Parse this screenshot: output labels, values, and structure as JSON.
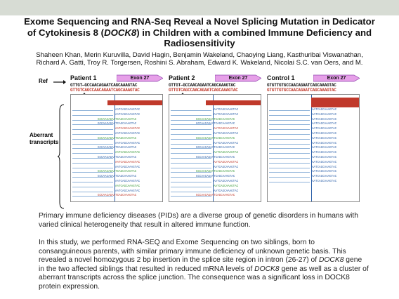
{
  "title_line1": "Exome Sequencing and RNA-Seq Reveal a Novel Splicing Mutation in Dedicator",
  "title_line2a": "of Cytokinesis 8 (",
  "title_italic": "DOCK8",
  "title_line2b": ") in Children with a combined Immune Deficiency and",
  "title_line3": "Radiosensitivity",
  "authors_line1": "Shaheen Khan, Merin Kuruvilla, David Hagin, Benjamin Wakeland, Chaoying Liang, Kasthuribai Viswanathan,",
  "authors_line2": "Richard A. Gatti, Troy R. Torgersen, Roshini S. Abraham, Edward K. Wakeland, Nicolai S.C. van Oers, and M.",
  "figure": {
    "ref_label": "Ref",
    "aberrant_line1": "Aberrant",
    "aberrant_line2": "transcripts",
    "panels": [
      {
        "title": "Patient 1",
        "exon": "Exon 27",
        "ref_seq": "GTTGT—GCCAACAGAATCAGCAAAGTAC",
        "alt_seq": "GTTGTCAGCCAACAGAATCAGCAAAGTAC",
        "read_seq": "AATCAGCAAAGTAC",
        "alt_read": "GCCAACAGAATCAGCAAAGTAC"
      },
      {
        "title": "Patient 2",
        "exon": "Exon 27",
        "ref_seq": "GTTGT—GCCAACAGAATCAGCAAAGTAC",
        "alt_seq": "GTTGTCAGCCAACAGAATCAGCAAAGTAC",
        "read_seq": "AATCAGCAAAGTAC",
        "alt_read": "GCCAACAGAATCAGCAAAGTAC"
      },
      {
        "title": "Control 1",
        "exon": "Exon 27",
        "ref_seq": "GTGTTGTGCCAACAGAATCAGCAAAGTAC",
        "alt_seq": "GTGTTGTGCCAACAGAATCAGCAAAGTAC",
        "read_seq": "AATCAGCAAAGTAC",
        "alt_read": "AATCAGCAAAGTAC"
      }
    ]
  },
  "para1": "Primary immune deficiency diseases (PIDs) are a diverse group of genetic disorders in humans with varied  clinical heterogeneity that result in altered immune function.",
  "para2_a": "In this study, we performed RNA-SEQ and Exome Sequencing on two siblings, born to consanguineous parents, with similar primary immune deficiency of unknown genetic basis. This revealed a novel homozygous 2 bp insertion in the splice site region in intron (26-27) of ",
  "para2_i1": "DOCK8",
  "para2_b": " gene in the two affected siblings that resulted in reduced mRNA levels of ",
  "para2_i2": "DOCK8",
  "para2_c": " gene as well as a cluster of aberrant transcripts across the splice junction. The consequence was a significant loss in DOCK8 protein expression.",
  "colors": {
    "exon_arrow": "#e6a0e8",
    "coverage": "#c0392b",
    "ref_text": "#111111",
    "alt_text": "#c0392b",
    "read_blue": "#2b5fa8",
    "read_green": "#3a9a3a",
    "read_red": "#c0392b"
  }
}
